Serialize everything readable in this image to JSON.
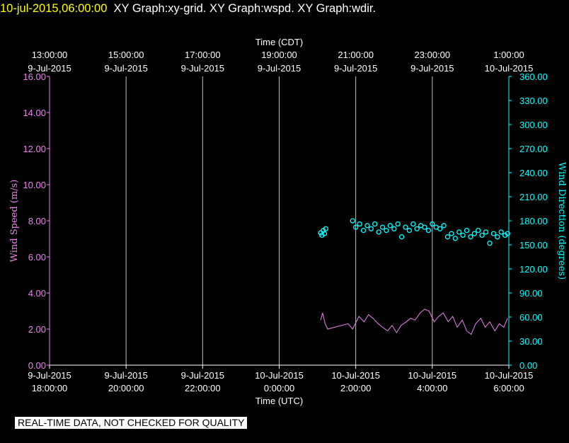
{
  "header": {
    "timestamp": "10-jul-2015,06:00:00",
    "graphs": "XY Graph:xy-grid.  XY Graph:wspd.  XY Graph:wdir."
  },
  "notice": "REAL-TIME DATA, NOT CHECKED FOR QUALITY",
  "colors": {
    "background": "#000000",
    "axis": "#ffffff",
    "wind_speed": "#ee82ee",
    "wind_direction": "#00ffff",
    "header_time": "#ffff00"
  },
  "chart_data": {
    "type": "line",
    "top_axis": {
      "title": "Time (CDT)",
      "ticks": [
        {
          "time": "13:00:00",
          "date": "9-Jul-2015"
        },
        {
          "time": "15:00:00",
          "date": "9-Jul-2015"
        },
        {
          "time": "17:00:00",
          "date": "9-Jul-2015"
        },
        {
          "time": "19:00:00",
          "date": "9-Jul-2015"
        },
        {
          "time": "21:00:00",
          "date": "9-Jul-2015"
        },
        {
          "time": "23:00:00",
          "date": "9-Jul-2015"
        },
        {
          "time": "1:00:00",
          "date": "10-Jul-2015"
        }
      ]
    },
    "bottom_axis": {
      "title": "Time (UTC)",
      "xlim": [
        "2015-07-09T18:00:00Z",
        "2015-07-10T06:00:00Z"
      ],
      "ticks": [
        {
          "date": "9-Jul-2015",
          "time": "18:00:00"
        },
        {
          "date": "9-Jul-2015",
          "time": "20:00:00"
        },
        {
          "date": "9-Jul-2015",
          "time": "22:00:00"
        },
        {
          "date": "10-Jul-2015",
          "time": "0:00:00"
        },
        {
          "date": "10-Jul-2015",
          "time": "2:00:00"
        },
        {
          "date": "10-Jul-2015",
          "time": "4:00:00"
        },
        {
          "date": "10-Jul-2015",
          "time": "6:00:00"
        }
      ]
    },
    "left_axis": {
      "label": "Wind Speed (m/s)",
      "ylim": [
        0,
        16
      ],
      "ticks": [
        "0.00",
        "2.00",
        "4.00",
        "6.00",
        "8.00",
        "10.00",
        "12.00",
        "14.00",
        "16.00"
      ]
    },
    "right_axis": {
      "label": "Wind Direction (degrees)",
      "ylim": [
        0,
        360
      ],
      "ticks": [
        "0.00",
        "30.00",
        "60.00",
        "90.00",
        "120.00",
        "150.00",
        "180.00",
        "210.00",
        "240.00",
        "270.00",
        "300.00",
        "330.00",
        "360.00"
      ]
    },
    "grid": "vertical",
    "series": [
      {
        "type": "line",
        "axis": "left",
        "x": [
          "2015-07-10T01:05:00Z",
          "2015-07-10T01:08:00Z",
          "2015-07-10T01:12:00Z",
          "2015-07-10T01:16:00Z",
          "2015-07-10T01:48:00Z",
          "2015-07-10T01:55:00Z",
          "2015-07-10T02:05:00Z",
          "2015-07-10T02:13:00Z",
          "2015-07-10T02:20:00Z",
          "2015-07-10T02:27:00Z",
          "2015-07-10T02:35:00Z",
          "2015-07-10T02:42:00Z",
          "2015-07-10T02:50:00Z",
          "2015-07-10T02:57:00Z",
          "2015-07-10T03:04:00Z",
          "2015-07-10T03:11:00Z",
          "2015-07-10T03:19:00Z",
          "2015-07-10T03:26:00Z",
          "2015-07-10T03:33:00Z",
          "2015-07-10T03:41:00Z",
          "2015-07-10T03:48:00Z",
          "2015-07-10T03:55:00Z",
          "2015-07-10T04:03:00Z",
          "2015-07-10T04:10:00Z",
          "2015-07-10T04:17:00Z",
          "2015-07-10T04:25:00Z",
          "2015-07-10T04:32:00Z",
          "2015-07-10T04:39:00Z",
          "2015-07-10T04:47:00Z",
          "2015-07-10T04:54:00Z",
          "2015-07-10T05:01:00Z",
          "2015-07-10T05:08:00Z",
          "2015-07-10T05:16:00Z",
          "2015-07-10T05:23:00Z",
          "2015-07-10T05:30:00Z",
          "2015-07-10T05:38:00Z",
          "2015-07-10T05:45:00Z",
          "2015-07-10T05:52:00Z",
          "2015-07-10T05:58:00Z"
        ],
        "values": [
          2.5,
          2.9,
          2.3,
          2.0,
          2.3,
          2.0,
          2.7,
          2.4,
          2.8,
          2.6,
          2.3,
          2.1,
          1.9,
          2.2,
          1.8,
          2.2,
          2.4,
          2.6,
          2.5,
          2.9,
          3.1,
          3.0,
          2.4,
          2.7,
          2.9,
          2.4,
          2.7,
          2.1,
          2.5,
          1.9,
          1.7,
          2.3,
          2.6,
          2.1,
          2.4,
          1.9,
          2.3,
          2.1,
          2.6
        ]
      },
      {
        "type": "scatter",
        "axis": "right",
        "x": [
          "2015-07-10T01:05:00Z",
          "2015-07-10T01:07:00Z",
          "2015-07-10T01:09:00Z",
          "2015-07-10T01:11:00Z",
          "2015-07-10T01:13:00Z",
          "2015-07-10T01:55:00Z",
          "2015-07-10T02:00:00Z",
          "2015-07-10T02:06:00Z",
          "2015-07-10T02:12:00Z",
          "2015-07-10T02:18:00Z",
          "2015-07-10T02:24:00Z",
          "2015-07-10T02:30:00Z",
          "2015-07-10T02:36:00Z",
          "2015-07-10T02:42:00Z",
          "2015-07-10T02:48:00Z",
          "2015-07-10T02:54:00Z",
          "2015-07-10T03:00:00Z",
          "2015-07-10T03:06:00Z",
          "2015-07-10T03:12:00Z",
          "2015-07-10T03:18:00Z",
          "2015-07-10T03:24:00Z",
          "2015-07-10T03:30:00Z",
          "2015-07-10T03:36:00Z",
          "2015-07-10T03:42:00Z",
          "2015-07-10T03:48:00Z",
          "2015-07-10T03:54:00Z",
          "2015-07-10T04:00:00Z",
          "2015-07-10T04:06:00Z",
          "2015-07-10T04:12:00Z",
          "2015-07-10T04:18:00Z",
          "2015-07-10T04:24:00Z",
          "2015-07-10T04:30:00Z",
          "2015-07-10T04:36:00Z",
          "2015-07-10T04:42:00Z",
          "2015-07-10T04:48:00Z",
          "2015-07-10T04:54:00Z",
          "2015-07-10T05:00:00Z",
          "2015-07-10T05:06:00Z",
          "2015-07-10T05:12:00Z",
          "2015-07-10T05:18:00Z",
          "2015-07-10T05:24:00Z",
          "2015-07-10T05:30:00Z",
          "2015-07-10T05:36:00Z",
          "2015-07-10T05:42:00Z",
          "2015-07-10T05:48:00Z",
          "2015-07-10T05:54:00Z",
          "2015-07-10T05:58:00Z"
        ],
        "values": [
          165,
          162,
          168,
          164,
          170,
          180,
          172,
          176,
          168,
          174,
          170,
          176,
          166,
          172,
          168,
          174,
          170,
          176,
          160,
          172,
          168,
          176,
          170,
          174,
          172,
          168,
          176,
          172,
          170,
          174,
          160,
          164,
          158,
          166,
          162,
          168,
          160,
          164,
          168,
          162,
          166,
          152,
          164,
          160,
          166,
          162,
          164
        ]
      }
    ]
  }
}
